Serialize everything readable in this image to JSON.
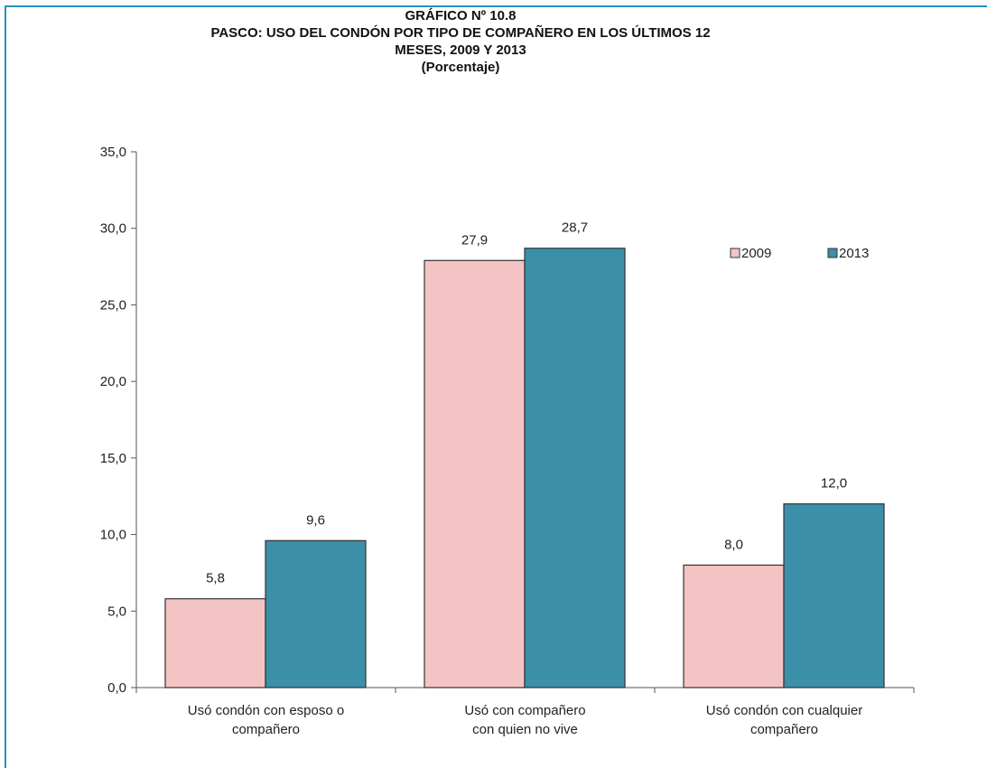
{
  "colors": {
    "frame": "#2a90c2",
    "series_2009": "#f4c4c4",
    "series_2013": "#3b8fa8",
    "bar_border": "#333333",
    "axis": "#555555"
  },
  "chart_data": {
    "type": "bar",
    "title_lines": [
      "GRÁFICO Nº 10.8",
      "PASCO: USO DEL CONDÓN POR TIPO DE COMPAÑERO EN LOS ÚLTIMOS 12",
      "MESES, 2009 Y 2013",
      "(Porcentaje)"
    ],
    "categories": [
      [
        "Usó condón con esposo o",
        "compañero"
      ],
      [
        "Usó con compañero",
        "con quien no vive"
      ],
      [
        "Usó condón con cualquier",
        "compañero"
      ]
    ],
    "series": [
      {
        "name": "2009",
        "values": [
          5.8,
          27.9,
          8.0
        ],
        "labels": [
          "5,8",
          "27,9",
          "8,0"
        ]
      },
      {
        "name": "2013",
        "values": [
          9.6,
          28.7,
          12.0
        ],
        "labels": [
          "9,6",
          "28,7",
          "12,0"
        ]
      }
    ],
    "ylim": [
      0,
      35
    ],
    "yticks": [
      0,
      5,
      10,
      15,
      20,
      25,
      30,
      35
    ],
    "ytick_labels": [
      "0,0",
      "5,0",
      "10,0",
      "15,0",
      "20,0",
      "25,0",
      "30,0",
      "35,0"
    ],
    "legend_position": "top-right",
    "grid": false
  }
}
